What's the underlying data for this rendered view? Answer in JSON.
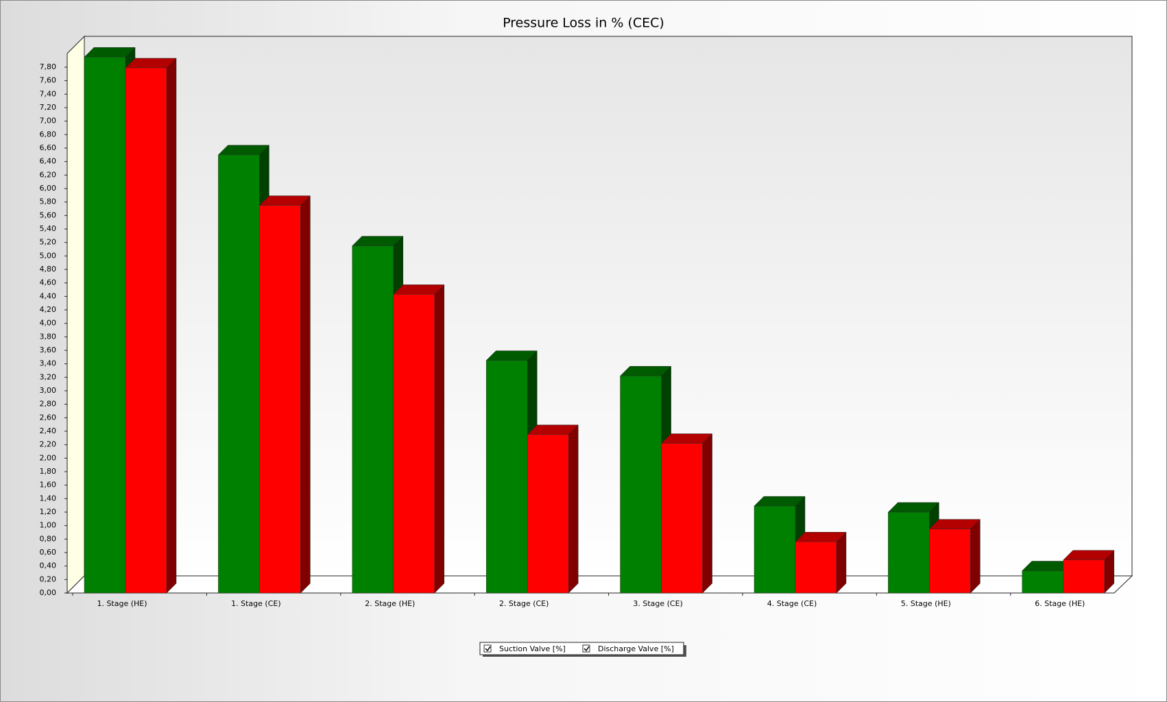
{
  "chart_data": {
    "type": "bar3d",
    "title": "Pressure Loss in % (CEC)",
    "categories": [
      "1. Stage (HE)",
      "1. Stage (CE)",
      "2. Stage (HE)",
      "2. Stage (CE)",
      "3. Stage (CE)",
      "4. Stage (CE)",
      "5. Stage (HE)",
      "6. Stage (HE)"
    ],
    "series": [
      {
        "name": "Suction Valve [%]",
        "color": "#008000",
        "values": [
          7.95,
          6.5,
          5.15,
          3.45,
          3.22,
          1.29,
          1.2,
          0.33
        ]
      },
      {
        "name": "Discharge Valve [%]",
        "color": "#ff0000",
        "values": [
          7.79,
          5.75,
          4.43,
          2.35,
          2.22,
          0.76,
          0.95,
          0.49
        ]
      }
    ],
    "ylim": [
      0,
      7.8
    ],
    "yticks": [
      {
        "value": 0,
        "label": "0,00"
      },
      {
        "value": 0.2,
        "label": "0,20"
      },
      {
        "value": 0.4,
        "label": "0,40"
      },
      {
        "value": 0.6,
        "label": "0,60"
      },
      {
        "value": 0.8,
        "label": "0,80"
      },
      {
        "value": 1,
        "label": "1,00"
      },
      {
        "value": 1.2,
        "label": "1,20"
      },
      {
        "value": 1.4,
        "label": "1,40"
      },
      {
        "value": 1.6,
        "label": "1,60"
      },
      {
        "value": 1.8,
        "label": "1,80"
      },
      {
        "value": 2,
        "label": "2,00"
      },
      {
        "value": 2.2,
        "label": "2,20"
      },
      {
        "value": 2.4,
        "label": "2,40"
      },
      {
        "value": 2.6,
        "label": "2,60"
      },
      {
        "value": 2.8,
        "label": "2,80"
      },
      {
        "value": 3,
        "label": "3,00"
      },
      {
        "value": 3.2,
        "label": "3,20"
      },
      {
        "value": 3.4,
        "label": "3,40"
      },
      {
        "value": 3.6,
        "label": "3,60"
      },
      {
        "value": 3.8,
        "label": "3,80"
      },
      {
        "value": 4,
        "label": "4,00"
      },
      {
        "value": 4.2,
        "label": "4,20"
      },
      {
        "value": 4.4,
        "label": "4,40"
      },
      {
        "value": 4.6,
        "label": "4,60"
      },
      {
        "value": 4.8,
        "label": "4,80"
      },
      {
        "value": 5,
        "label": "5,00"
      },
      {
        "value": 5.2,
        "label": "5,20"
      },
      {
        "value": 5.4,
        "label": "5,40"
      },
      {
        "value": 5.6,
        "label": "5,60"
      },
      {
        "value": 5.8,
        "label": "5,80"
      },
      {
        "value": 6,
        "label": "6,00"
      },
      {
        "value": 6.2,
        "label": "6,20"
      },
      {
        "value": 6.4,
        "label": "6,40"
      },
      {
        "value": 6.6,
        "label": "6,60"
      },
      {
        "value": 6.8,
        "label": "6,80"
      },
      {
        "value": 7,
        "label": "7,00"
      },
      {
        "value": 7.2,
        "label": "7,20"
      },
      {
        "value": 7.4,
        "label": "7,40"
      },
      {
        "value": 7.6,
        "label": "7,60"
      },
      {
        "value": 7.8,
        "label": "7,80"
      }
    ]
  }
}
